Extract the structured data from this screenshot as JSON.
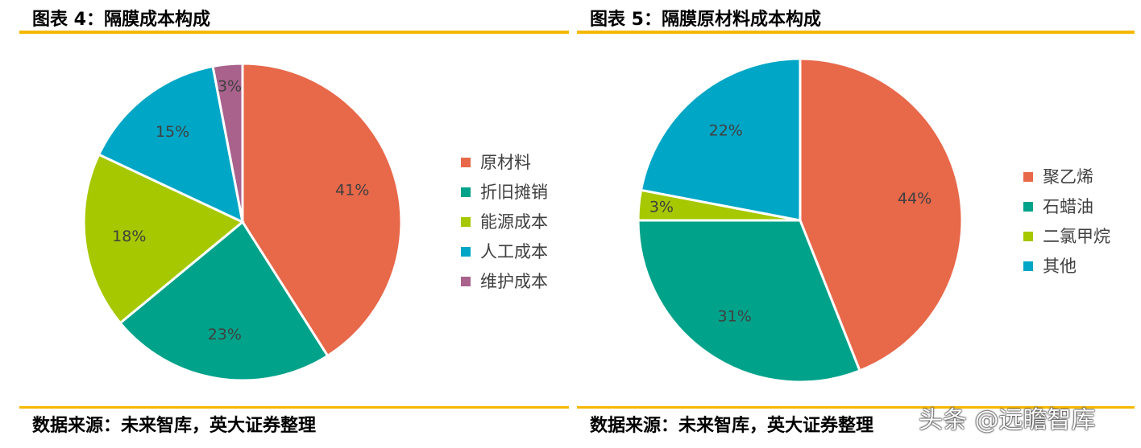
{
  "colors": {
    "rule": "#F5B800",
    "orange": "#E8684A",
    "teal": "#00A28A",
    "lime": "#A6C800",
    "blue": "#00A6C6",
    "mauve": "#A8628C"
  },
  "left": {
    "title": "图表 4：隔膜成本构成",
    "source": "数据来源：未来智库，英大证券整理"
  },
  "right": {
    "title": "图表 5：隔膜原材料成本构成",
    "source": "数据来源：未来智库，英大证券整理"
  },
  "watermark": "头条 @远瞻智库",
  "chart_data": [
    {
      "type": "pie",
      "legend_position": "right",
      "slices": [
        {
          "label": "原材料",
          "value": 41,
          "display": "41%",
          "color": "#E8684A"
        },
        {
          "label": "折旧摊销",
          "value": 23,
          "display": "23%",
          "color": "#00A28A"
        },
        {
          "label": "能源成本",
          "value": 18,
          "display": "18%",
          "color": "#A6C800"
        },
        {
          "label": "人工成本",
          "value": 15,
          "display": "15%",
          "color": "#00A6C6"
        },
        {
          "label": "维护成本",
          "value": 3,
          "display": "3%",
          "color": "#A8628C"
        }
      ]
    },
    {
      "type": "pie",
      "legend_position": "right",
      "slices": [
        {
          "label": "聚乙烯",
          "value": 44,
          "display": "44%",
          "color": "#E8684A"
        },
        {
          "label": "石蜡油",
          "value": 31,
          "display": "31%",
          "color": "#00A28A"
        },
        {
          "label": "二氯甲烷",
          "value": 3,
          "display": "3%",
          "color": "#A6C800"
        },
        {
          "label": "其他",
          "value": 22,
          "display": "22%",
          "color": "#00A6C6"
        }
      ]
    }
  ]
}
